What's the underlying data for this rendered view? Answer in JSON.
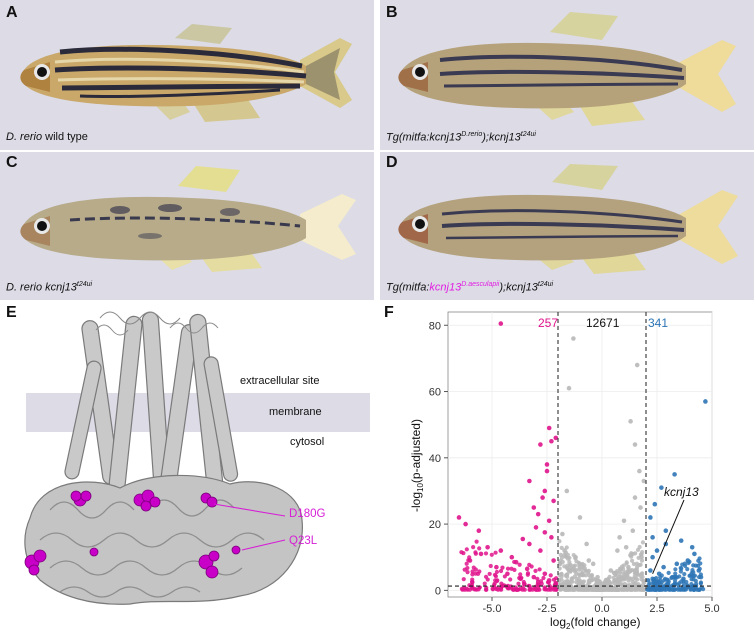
{
  "panels": {
    "A": {
      "label": "A",
      "caption_species": "D. rerio",
      "caption_rest": " wild type"
    },
    "B": {
      "label": "B",
      "cap_tg": "Tg(mitfa:kcnj13",
      "cap_sup1": "D.rerio",
      "cap_mid": ");kcnj13",
      "cap_sup2": "t24ui"
    },
    "C": {
      "label": "C",
      "cap_main": "D. rerio kcnj13",
      "cap_sup": "t24ui"
    },
    "D": {
      "label": "D",
      "cap_tg": "Tg(mitfa:",
      "cap_magenta": "kcnj13",
      "cap_sup_magenta": "D.aesculapii",
      "cap_mid": ");kcnj13",
      "cap_sup2": "t24ui"
    },
    "E": {
      "label": "E",
      "extracellular": "extracellular site",
      "membrane": "membrane",
      "cytosol": "cytosol",
      "mut1": "D180G",
      "mut2": "Q23L"
    },
    "F": {
      "label": "F"
    }
  },
  "colors": {
    "panel_bg": "#dcdbe6",
    "magenta": "#e0148c",
    "blue": "#2e75b6",
    "grey": "#b8b8b8",
    "mutation": "#d61fd6"
  },
  "chart_data": {
    "type": "scatter",
    "title": "",
    "xlabel": "log2(fold change)",
    "ylabel": "-log10(p-adjusted)",
    "xlim": [
      -7,
      5
    ],
    "ylim": [
      -2,
      84
    ],
    "xticks": [
      "-5.0",
      "-2.5",
      "0.0",
      "2.5",
      "5.0"
    ],
    "yticks": [
      "0",
      "20",
      "40",
      "60",
      "80"
    ],
    "thresholds": {
      "x": [
        -2,
        2
      ],
      "y": 1.3
    },
    "counts": {
      "down": "257",
      "ns": "12671",
      "up": "341"
    },
    "annotation": "kcnj13",
    "annotation_point": [
      2.3,
      5
    ],
    "series": [
      {
        "color": "#e0148c",
        "points": [
          [
            -4.6,
            80.5
          ],
          [
            -2.4,
            49
          ],
          [
            -2.3,
            45
          ],
          [
            -2.1,
            46
          ],
          [
            -2.5,
            36
          ],
          [
            -3.3,
            33
          ],
          [
            -2.6,
            30
          ],
          [
            -2.2,
            27
          ],
          [
            -3.1,
            25
          ],
          [
            -2.9,
            23
          ],
          [
            -6.5,
            22
          ],
          [
            -6.2,
            20
          ],
          [
            -2.7,
            28
          ],
          [
            -2.4,
            21
          ],
          [
            -3.0,
            19
          ],
          [
            -2.6,
            17.5
          ],
          [
            -3.6,
            15.5
          ],
          [
            -2.3,
            16
          ],
          [
            -5.6,
            18
          ],
          [
            -3.3,
            14
          ],
          [
            -4.6,
            12
          ],
          [
            -2.8,
            12
          ],
          [
            -4.1,
            10
          ],
          [
            -5.2,
            13
          ],
          [
            -3.9,
            8.5
          ],
          [
            -4.8,
            7
          ],
          [
            -3.4,
            6.5
          ],
          [
            -2.2,
            9
          ],
          [
            -5.5,
            11
          ],
          [
            -2.6,
            5
          ],
          [
            -3.1,
            4
          ],
          [
            -4.3,
            5
          ],
          [
            -2.4,
            3
          ],
          [
            -3.7,
            3.5
          ],
          [
            -2.9,
            2.5
          ],
          [
            -2.1,
            2
          ],
          [
            -6.0,
            9
          ],
          [
            -2.5,
            38
          ],
          [
            -2.8,
            44
          ]
        ]
      },
      {
        "color": "#2e75b6",
        "points": [
          [
            4.7,
            57
          ],
          [
            3.3,
            35
          ],
          [
            2.7,
            31
          ],
          [
            2.4,
            26
          ],
          [
            2.2,
            22
          ],
          [
            2.9,
            18
          ],
          [
            3.6,
            15
          ],
          [
            2.5,
            12
          ],
          [
            4.1,
            13
          ],
          [
            2.3,
            10
          ],
          [
            3.9,
            9
          ],
          [
            2.8,
            7
          ],
          [
            4.4,
            6
          ],
          [
            2.6,
            5
          ],
          [
            3.2,
            4
          ],
          [
            2.1,
            3
          ],
          [
            3.7,
            3.5
          ],
          [
            2.4,
            2.5
          ],
          [
            4.2,
            11
          ],
          [
            2.9,
            14
          ],
          [
            3.4,
            8
          ],
          [
            2.2,
            6
          ],
          [
            3.0,
            2
          ],
          [
            4.5,
            4
          ],
          [
            2.3,
            16
          ]
        ]
      },
      {
        "color": "#b8b8b8",
        "points": [
          [
            -1.3,
            76
          ],
          [
            -1.5,
            61
          ],
          [
            1.6,
            68
          ],
          [
            1.3,
            51
          ],
          [
            1.5,
            44
          ],
          [
            1.7,
            36
          ],
          [
            -1.0,
            22
          ],
          [
            1.0,
            21
          ],
          [
            -1.6,
            30
          ],
          [
            1.9,
            33
          ],
          [
            0.7,
            12
          ],
          [
            -0.7,
            14
          ],
          [
            1.4,
            18
          ],
          [
            -1.8,
            17
          ],
          [
            0.4,
            6
          ],
          [
            -0.4,
            8
          ],
          [
            1.8,
            10
          ],
          [
            -1.2,
            10
          ],
          [
            0.2,
            3
          ],
          [
            -0.2,
            4
          ],
          [
            1.2,
            7
          ],
          [
            -0.9,
            5
          ],
          [
            0.9,
            4
          ],
          [
            -1.5,
            6
          ],
          [
            0.6,
            3
          ],
          [
            1.1,
            13
          ],
          [
            -0.6,
            9
          ],
          [
            1.6,
            5
          ],
          [
            -1.9,
            8
          ],
          [
            1.75,
            25
          ],
          [
            -1.7,
            12
          ],
          [
            1.5,
            28
          ],
          [
            0.8,
            16
          ]
        ]
      }
    ]
  }
}
